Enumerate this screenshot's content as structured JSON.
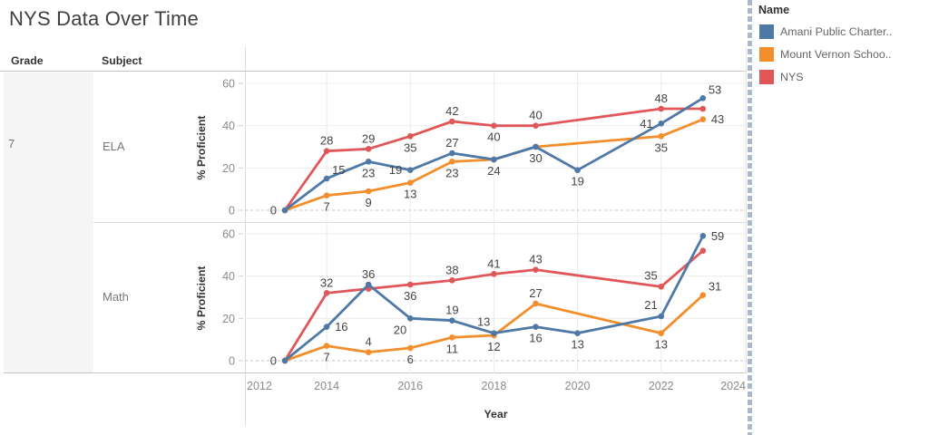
{
  "title": "NYS Data Over Time",
  "row_table": {
    "grade_header": "Grade",
    "subject_header": "Subject",
    "grade_value": "7"
  },
  "axes": {
    "x_title": "Year",
    "y_title": "% Proficient",
    "x_ticks": [
      2012,
      2014,
      2016,
      2018,
      2020,
      2022,
      2024
    ],
    "y_ticks": [
      0,
      20,
      40,
      60
    ],
    "y_range": [
      0,
      60
    ],
    "x_range": [
      2012,
      2024
    ],
    "grid": true
  },
  "legend": {
    "title": "Name",
    "position": "right",
    "items": [
      {
        "label": "Amani Public Charter..",
        "color": "#4e79a7"
      },
      {
        "label": "Mount Vernon Schoo..",
        "color": "#f28e2b"
      },
      {
        "label": "NYS",
        "color": "#e15759"
      }
    ]
  },
  "ui_colors": {
    "grade_cell_bg": "#f5f5f5",
    "panel_divider": "#a9b9ca",
    "gridline": "#ebebeb",
    "zero_line": "#c6c6c6"
  },
  "chart_data": [
    {
      "type": "line",
      "subject": "ELA",
      "series": [
        {
          "id": "amani",
          "name": "Amani Public Charter..",
          "color": "#4e79a7",
          "points": [
            {
              "year": 2013,
              "value": 0
            },
            {
              "year": 2014,
              "value": 15,
              "label": "15",
              "label_pos": "above-right"
            },
            {
              "year": 2015,
              "value": 23,
              "label": "23",
              "label_pos": "below"
            },
            {
              "year": 2016,
              "value": 19,
              "label": "19",
              "label_pos": "left"
            },
            {
              "year": 2017,
              "value": 27,
              "label": "27",
              "label_pos": "above"
            },
            {
              "year": 2018,
              "value": 24,
              "label": "24",
              "label_pos": "below"
            },
            {
              "year": 2019,
              "value": 30
            },
            {
              "year": 2020,
              "value": 19,
              "label": "19",
              "label_pos": "below"
            },
            {
              "year": 2022,
              "value": 41,
              "label": "41",
              "label_pos": "left"
            },
            {
              "year": 2023,
              "value": 53,
              "label": "53",
              "label_pos": "above-right"
            }
          ]
        },
        {
          "id": "mount-vernon",
          "name": "Mount Vernon Schoo..",
          "color": "#f28e2b",
          "points": [
            {
              "year": 2013,
              "value": 0
            },
            {
              "year": 2014,
              "value": 7,
              "label": "7",
              "label_pos": "below"
            },
            {
              "year": 2015,
              "value": 9,
              "label": "9",
              "label_pos": "below"
            },
            {
              "year": 2016,
              "value": 13,
              "label": "13",
              "label_pos": "below"
            },
            {
              "year": 2017,
              "value": 23,
              "label": "23",
              "label_pos": "below"
            },
            {
              "year": 2018,
              "value": 24
            },
            {
              "year": 2019,
              "value": 30,
              "label": "30",
              "label_pos": "below"
            },
            {
              "year": 2022,
              "value": 35,
              "label": "35",
              "label_pos": "below"
            },
            {
              "year": 2023,
              "value": 43,
              "label": "43",
              "label_pos": "right"
            }
          ]
        },
        {
          "id": "nys",
          "name": "NYS",
          "color": "#e15759",
          "points": [
            {
              "year": 2013,
              "value": 0,
              "label": "0",
              "label_pos": "left"
            },
            {
              "year": 2014,
              "value": 28,
              "label": "28",
              "label_pos": "above"
            },
            {
              "year": 2015,
              "value": 29,
              "label": "29",
              "label_pos": "above"
            },
            {
              "year": 2016,
              "value": 35,
              "label": "35",
              "label_pos": "below"
            },
            {
              "year": 2017,
              "value": 42,
              "label": "42",
              "label_pos": "above"
            },
            {
              "year": 2018,
              "value": 40,
              "label": "40",
              "label_pos": "below"
            },
            {
              "year": 2019,
              "value": 40,
              "label": "40",
              "label_pos": "above"
            },
            {
              "year": 2022,
              "value": 48,
              "label": "48",
              "label_pos": "above"
            },
            {
              "year": 2023,
              "value": 48
            }
          ]
        }
      ]
    },
    {
      "type": "line",
      "subject": "Math",
      "series": [
        {
          "id": "amani",
          "name": "Amani Public Charter..",
          "color": "#4e79a7",
          "points": [
            {
              "year": 2013,
              "value": 0
            },
            {
              "year": 2014,
              "value": 16,
              "label": "16",
              "label_pos": "right"
            },
            {
              "year": 2015,
              "value": 36,
              "label": "36",
              "label_pos": "above"
            },
            {
              "year": 2016,
              "value": 20,
              "label": "20",
              "label_pos": "below-left"
            },
            {
              "year": 2017,
              "value": 19,
              "label": "19",
              "label_pos": "above"
            },
            {
              "year": 2018,
              "value": 13,
              "label": "13",
              "label_pos": "above-left"
            },
            {
              "year": 2019,
              "value": 16,
              "label": "16",
              "label_pos": "below"
            },
            {
              "year": 2020,
              "value": 13,
              "label": "13",
              "label_pos": "below"
            },
            {
              "year": 2022,
              "value": 21,
              "label": "21",
              "label_pos": "above-left"
            },
            {
              "year": 2023,
              "value": 59,
              "label": "59",
              "label_pos": "right"
            }
          ]
        },
        {
          "id": "mount-vernon",
          "name": "Mount Vernon Schoo..",
          "color": "#f28e2b",
          "points": [
            {
              "year": 2013,
              "value": 0
            },
            {
              "year": 2014,
              "value": 7,
              "label": "7",
              "label_pos": "below"
            },
            {
              "year": 2015,
              "value": 4,
              "label": "4",
              "label_pos": "above"
            },
            {
              "year": 2016,
              "value": 6,
              "label": "6",
              "label_pos": "below"
            },
            {
              "year": 2017,
              "value": 11,
              "label": "11",
              "label_pos": "below"
            },
            {
              "year": 2018,
              "value": 12,
              "label": "12",
              "label_pos": "below"
            },
            {
              "year": 2019,
              "value": 27,
              "label": "27",
              "label_pos": "above"
            },
            {
              "year": 2022,
              "value": 13,
              "label": "13",
              "label_pos": "below"
            },
            {
              "year": 2023,
              "value": 31,
              "label": "31",
              "label_pos": "above-right"
            }
          ]
        },
        {
          "id": "nys",
          "name": "NYS",
          "color": "#e15759",
          "points": [
            {
              "year": 2013,
              "value": 0,
              "label": "0",
              "label_pos": "left"
            },
            {
              "year": 2014,
              "value": 32,
              "label": "32",
              "label_pos": "above"
            },
            {
              "year": 2015,
              "value": 34
            },
            {
              "year": 2016,
              "value": 36,
              "label": "36",
              "label_pos": "below"
            },
            {
              "year": 2017,
              "value": 38,
              "label": "38",
              "label_pos": "above"
            },
            {
              "year": 2018,
              "value": 41,
              "label": "41",
              "label_pos": "above"
            },
            {
              "year": 2019,
              "value": 43,
              "label": "43",
              "label_pos": "above"
            },
            {
              "year": 2022,
              "value": 35,
              "label": "35",
              "label_pos": "above-left"
            },
            {
              "year": 2023,
              "value": 52
            }
          ]
        }
      ]
    }
  ]
}
